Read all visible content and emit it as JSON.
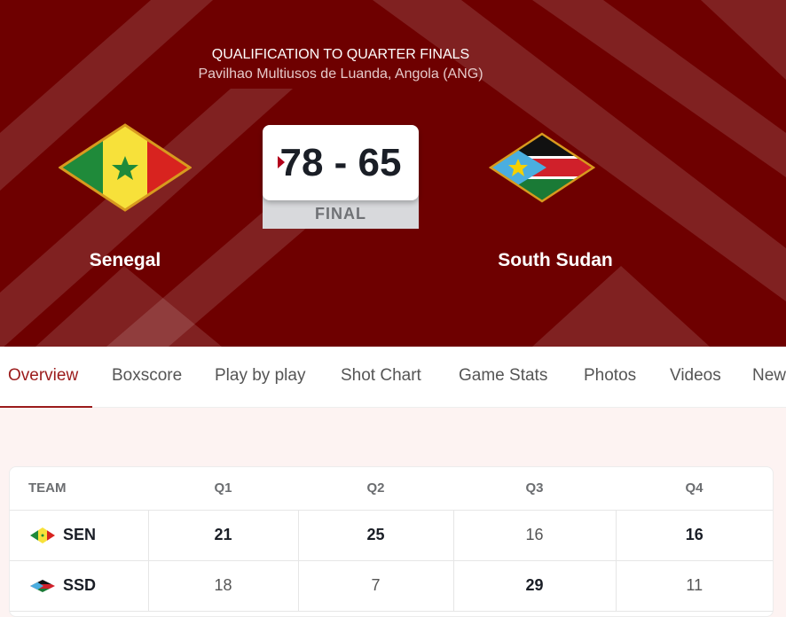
{
  "header": {
    "round": "QUALIFICATION TO QUARTER FINALS",
    "venue": "Pavilhao Multiusos de Luanda, Angola (ANG)"
  },
  "game": {
    "score": "78 - 65",
    "status": "FINAL"
  },
  "home": {
    "name": "Senegal",
    "code": "SEN",
    "flag": "senegal-flag"
  },
  "away": {
    "name": "South Sudan",
    "code": "SSD",
    "flag": "south-sudan-flag"
  },
  "colors": {
    "hero_bg": "#6e0000",
    "accent": "#9b1b1b"
  },
  "tabs": [
    {
      "label": "Overview",
      "active": true
    },
    {
      "label": "Boxscore"
    },
    {
      "label": "Play by play"
    },
    {
      "label": "Shot Chart"
    },
    {
      "label": "Game Stats"
    },
    {
      "label": "Photos"
    },
    {
      "label": "Videos"
    },
    {
      "label": "News"
    }
  ],
  "table": {
    "headers": [
      "TEAM",
      "Q1",
      "Q2",
      "Q3",
      "Q4"
    ],
    "rows": [
      {
        "team": "SEN",
        "q": [
          "21",
          "25",
          "16",
          "16"
        ]
      },
      {
        "team": "SSD",
        "q": [
          "18",
          "7",
          "29",
          "11"
        ]
      }
    ]
  }
}
